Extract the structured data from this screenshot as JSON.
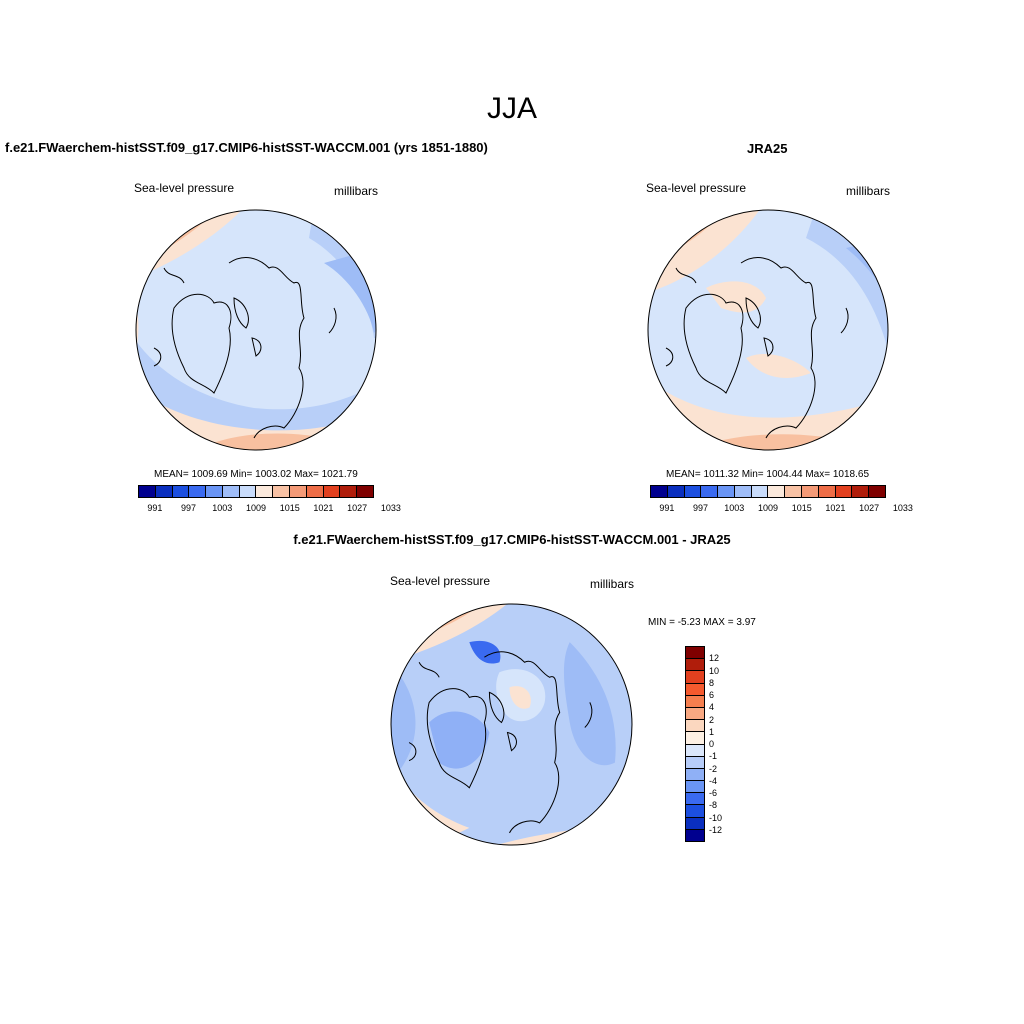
{
  "title": "JJA",
  "panels": [
    {
      "title": "f.e21.FWaerchem-histSST.f09_g17.CMIP6-histSST-WACCM.001 (yrs 1851-1880)",
      "left_label": "Sea-level pressure",
      "right_label": "millibars",
      "stats": "MEAN= 1009.69  Min= 1003.02  Max= 1021.79"
    },
    {
      "title": "JRA25",
      "left_label": "Sea-level pressure",
      "right_label": "millibars",
      "stats": "MEAN= 1011.32  Min= 1004.44  Max= 1018.65"
    },
    {
      "title": "f.e21.FWaerchem-histSST.f09_g17.CMIP6-histSST-WACCM.001 - JRA25",
      "left_label": "Sea-level pressure",
      "right_label": "millibars",
      "stats": "MIN =  -5.23 MAX =   3.97"
    }
  ],
  "colorbar_abs": {
    "colors": [
      "#00008f",
      "#0a2fbf",
      "#1c4fe0",
      "#3a6af0",
      "#6a95f5",
      "#9fbdf8",
      "#c9dcfb",
      "#fbe9dc",
      "#f8c2a5",
      "#f49a77",
      "#ee6d47",
      "#e2401f",
      "#b01d0b",
      "#7f0000"
    ],
    "tick_labels": [
      "991",
      "997",
      "1003",
      "1009",
      "1015",
      "1021",
      "1027",
      "1033"
    ]
  },
  "colorbar_diff": {
    "colors": [
      "#7f0000",
      "#b01d0b",
      "#e2401f",
      "#f55a2e",
      "#f57f4f",
      "#f8a882",
      "#fbd7bf",
      "#fdf0e3",
      "#dbe7fb",
      "#b7cdf9",
      "#8fb0f6",
      "#6a95f5",
      "#3a6af0",
      "#1c4fe0",
      "#0a2fbf",
      "#00008f"
    ],
    "tick_labels": [
      "12",
      "10",
      "8",
      "6",
      "4",
      "2",
      "1",
      "0",
      "-1",
      "-2",
      "-4",
      "-6",
      "-8",
      "-10",
      "-12"
    ]
  }
}
